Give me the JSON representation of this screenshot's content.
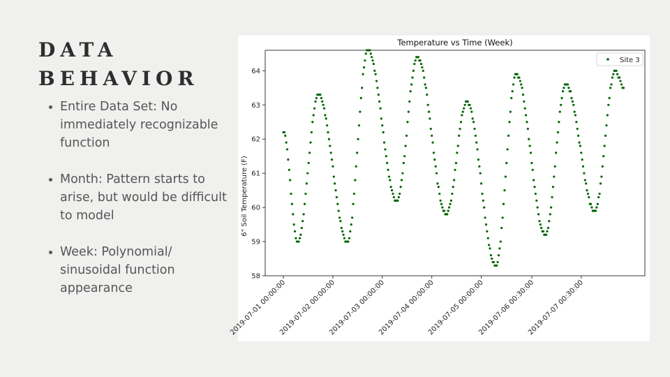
{
  "slide": {
    "title_line1": "DATA",
    "title_line2": "BEHAVIOR",
    "bullets": [
      "Entire Data Set: No immediately recognizable function",
      "Month: Pattern starts to arise, but would be difficult to model",
      "Week: Polynomial/ sinusoidal function appearance"
    ]
  },
  "chart_data": {
    "type": "scatter",
    "title": "Temperature vs Time (Week)",
    "xlabel": "",
    "ylabel": "6\" Soil Temperature (F)",
    "ylim": [
      58,
      64.6
    ],
    "yticks": [
      58,
      59,
      60,
      61,
      62,
      63,
      64
    ],
    "x_tick_labels": [
      "2019-07-01 00:00:00",
      "2019-07-02 00:00:00",
      "2019-07-03 00:00:00",
      "2019-07-04 00:00:00",
      "2019-07-05 00:00:00",
      "2019-07-06 00:30:00",
      "2019-07-07 00:30:00"
    ],
    "grid": false,
    "legend": {
      "position": "top-right",
      "entries": [
        "Site 3"
      ]
    },
    "series": [
      {
        "name": "Site 3",
        "color": "#006400",
        "key_points": [
          {
            "x": "2019-07-01 00:00",
            "y": 62.2
          },
          {
            "x": "2019-07-01 07:00",
            "y": 59.0
          },
          {
            "x": "2019-07-01 17:00",
            "y": 63.3
          },
          {
            "x": "2019-07-02 07:00",
            "y": 59.0
          },
          {
            "x": "2019-07-02 17:00",
            "y": 64.6
          },
          {
            "x": "2019-07-03 07:00",
            "y": 60.2
          },
          {
            "x": "2019-07-03 17:00",
            "y": 64.4
          },
          {
            "x": "2019-07-04 07:00",
            "y": 59.8
          },
          {
            "x": "2019-07-04 17:00",
            "y": 63.1
          },
          {
            "x": "2019-07-05 07:00",
            "y": 58.3
          },
          {
            "x": "2019-07-05 17:00",
            "y": 63.9
          },
          {
            "x": "2019-07-06 07:00",
            "y": 59.2
          },
          {
            "x": "2019-07-06 17:00",
            "y": 63.6
          },
          {
            "x": "2019-07-07 07:00",
            "y": 59.9
          },
          {
            "x": "2019-07-07 17:00",
            "y": 64.0
          },
          {
            "x": "2019-07-07 21:00",
            "y": 63.5
          }
        ]
      }
    ]
  }
}
